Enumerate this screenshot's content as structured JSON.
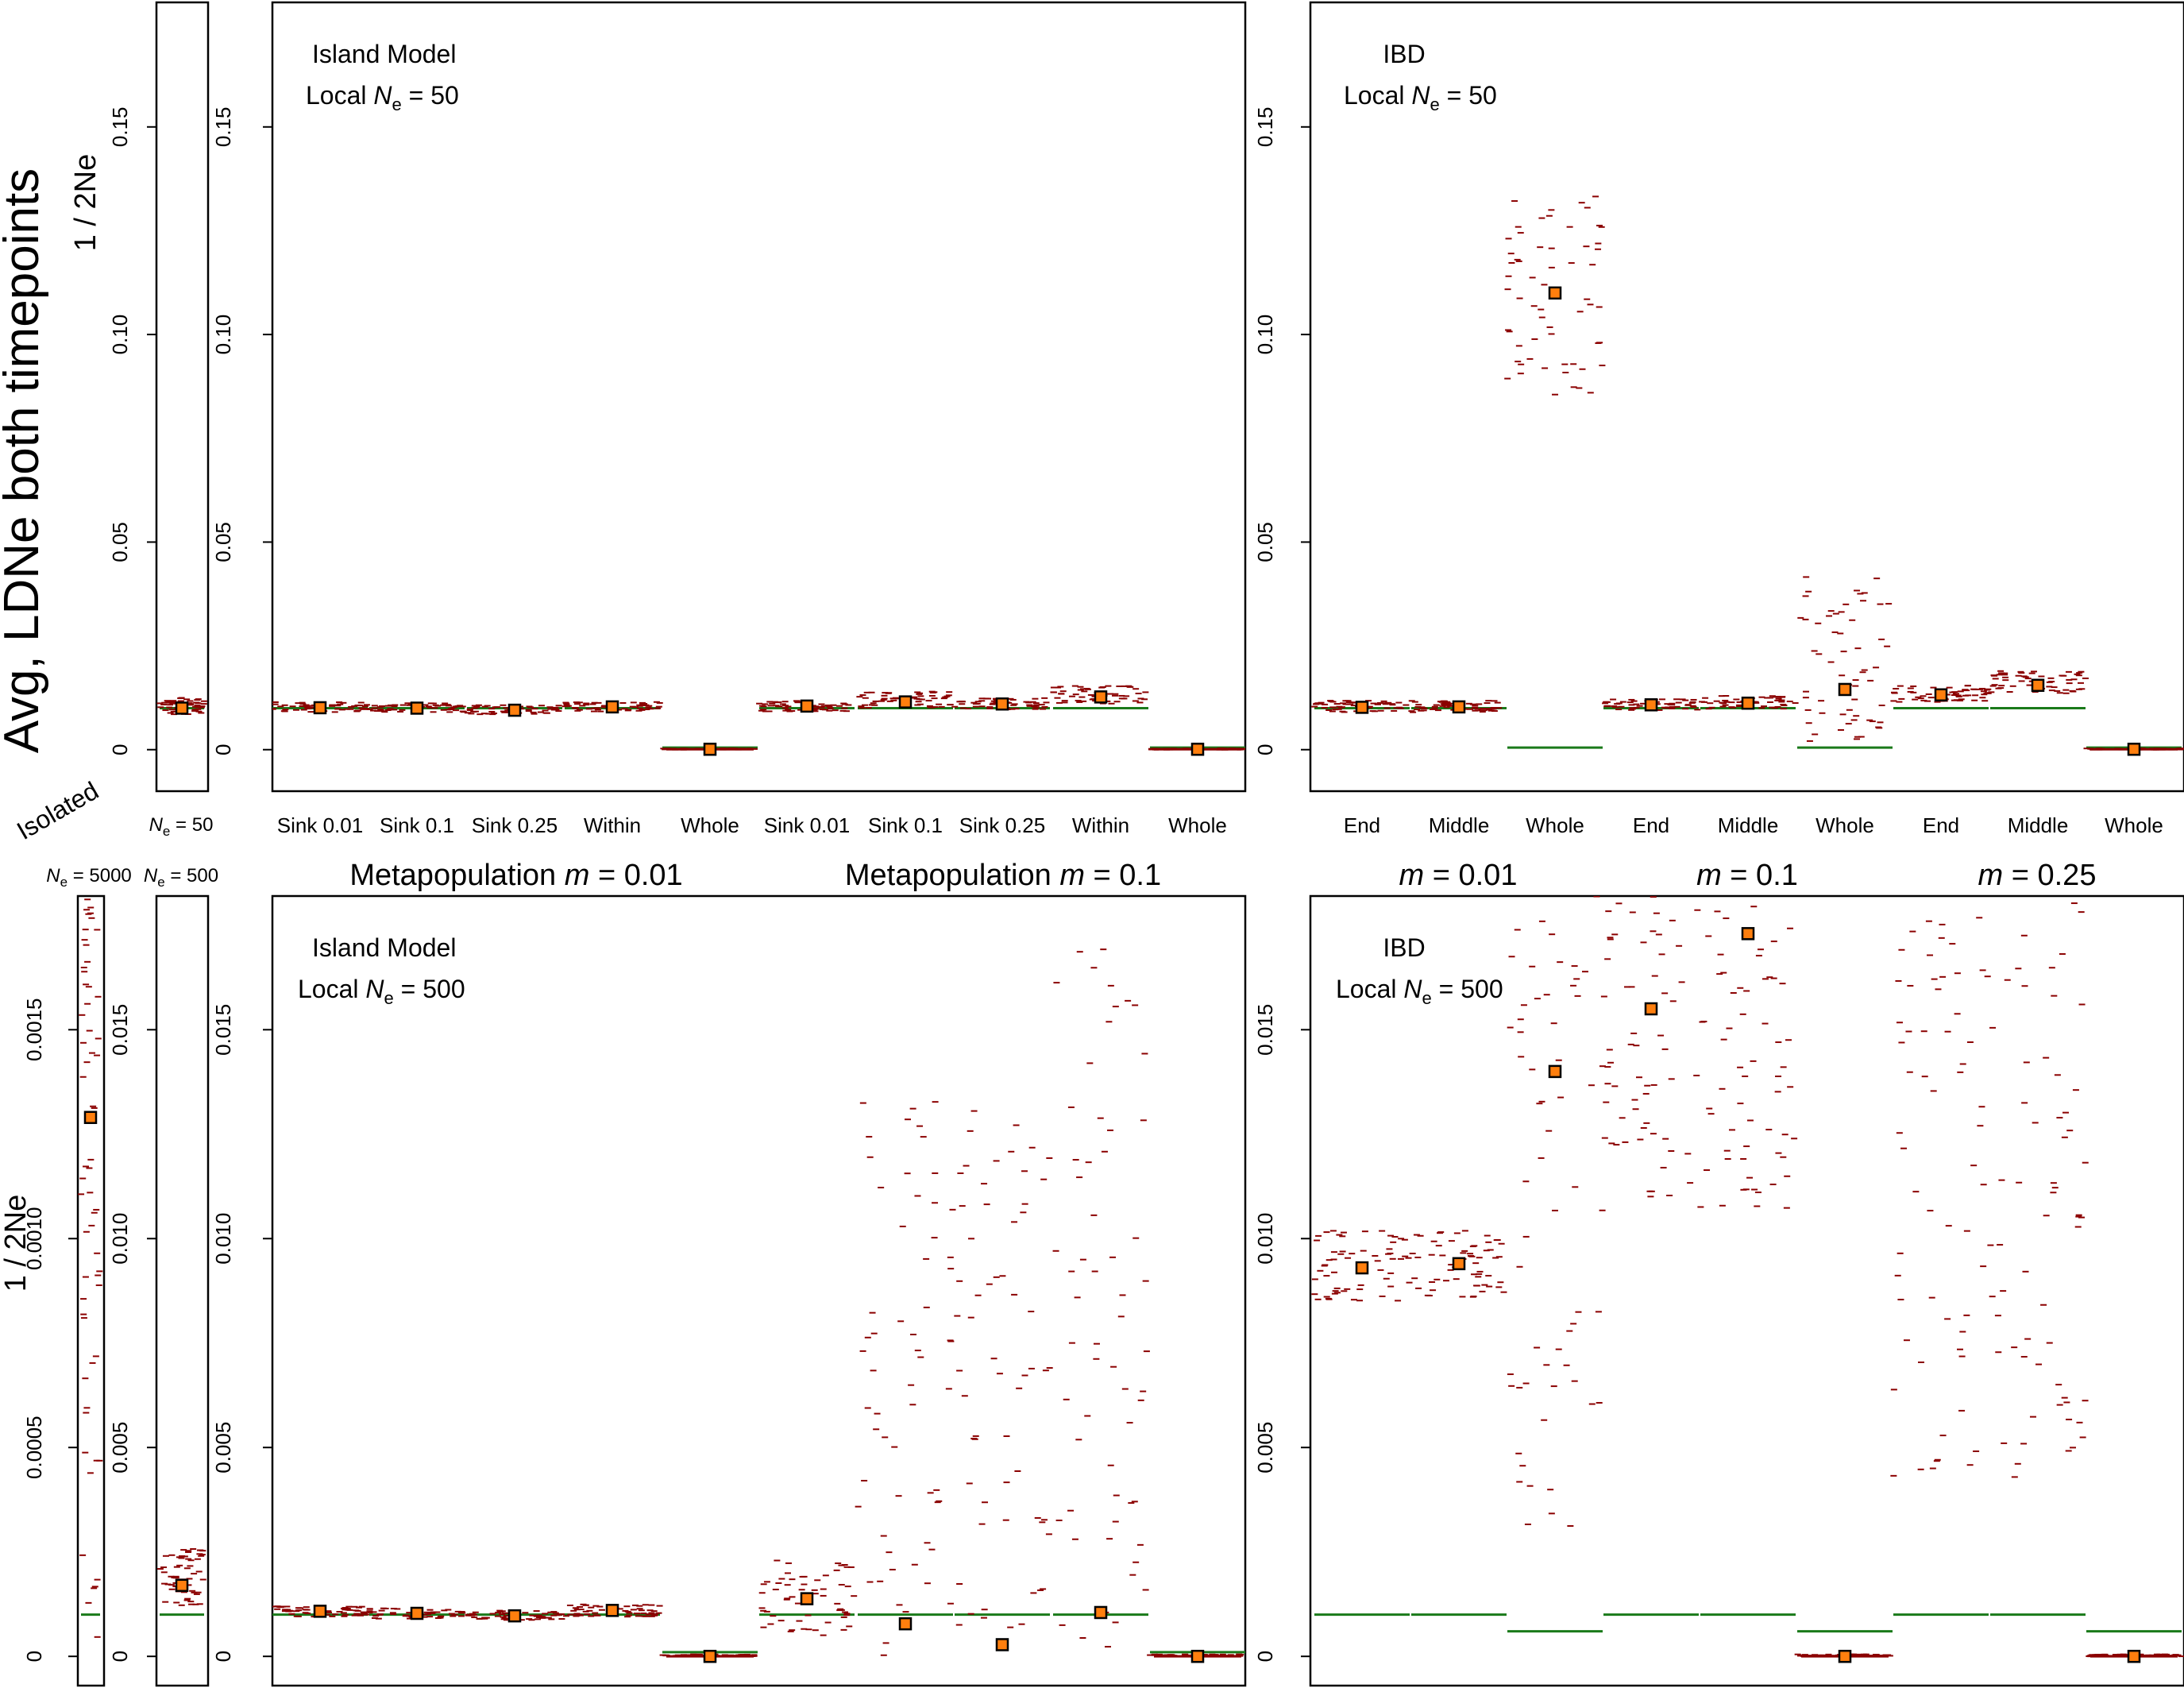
{
  "figure": {
    "main_ylabel": "Avg, LDNe both timepoints",
    "colors": {
      "sample_mark": "#8b0000",
      "mean_marker_fill": "#ff7f0e",
      "mean_marker_stroke": "#000000",
      "true_value_line": "#1a7a1a",
      "axis": "#000000"
    },
    "top_row": {
      "ylabel": "1 / 2Ne",
      "isolated_label": "Isolated",
      "isolated_ne_label": "N",
      "isolated_ne_sub": "e",
      "isolated_ne_value": " = 50"
    },
    "bottom_row": {
      "ylabel": "1 / 2Ne",
      "isolated_ne_5000": {
        "pre": "N",
        "sub": "e",
        "post": " = 5000"
      },
      "isolated_ne_500": {
        "pre": "N",
        "sub": "e",
        "post": " = 500"
      }
    },
    "group_headers": {
      "meta_01": {
        "pre": "Metapopulation ",
        "m": "m",
        "post": " = 0.01"
      },
      "meta_1": {
        "pre": "Metapopulation ",
        "m": "m",
        "post": " = 0.1"
      },
      "ibd_01": {
        "m": "m",
        "post": " = 0.01"
      },
      "ibd_1": {
        "m": "m",
        "post": " = 0.1"
      },
      "ibd_25": {
        "m": "m",
        "post": " = 0.25"
      }
    }
  },
  "chart_data": [
    {
      "panel": "top-isolated",
      "type": "scatter",
      "ylim": [
        -0.01,
        0.18
      ],
      "yticks": [
        0,
        0.05,
        0.1,
        0.15
      ],
      "ytick_labels": [
        "0",
        "0.05",
        "0.10",
        "0.15"
      ],
      "categories": [
        ""
      ],
      "means": [
        0.01
      ],
      "true_values": [
        0.01
      ],
      "spread": [
        [
          0.0085,
          0.0125
        ]
      ],
      "xlabel": "Ne = 50"
    },
    {
      "panel": "top-island",
      "type": "scatter",
      "title_line1": "Island Model",
      "title_line2": {
        "pre": "Local ",
        "n": "N",
        "sub": "e",
        "post": " = 50"
      },
      "ylim": [
        -0.01,
        0.18
      ],
      "yticks": [
        0,
        0.05,
        0.1,
        0.15
      ],
      "ytick_labels": [
        "0",
        "0.05",
        "0.10",
        "0.15"
      ],
      "categories": [
        "Sink 0.01",
        "Sink 0.1",
        "Sink 0.25",
        "Within",
        "Whole",
        "Sink 0.01",
        "Sink 0.1",
        "Sink 0.25",
        "Within",
        "Whole"
      ],
      "means": [
        0.0101,
        0.01,
        0.0095,
        0.0103,
        0.0001,
        0.0105,
        0.0115,
        0.011,
        0.0127,
        0.0001
      ],
      "true_values": [
        0.01,
        0.01,
        0.01,
        0.01,
        0.0005,
        0.01,
        0.01,
        0.01,
        0.01,
        0.0005
      ],
      "spread": [
        [
          0.009,
          0.0115
        ],
        [
          0.009,
          0.0112
        ],
        [
          0.0085,
          0.0108
        ],
        [
          0.0092,
          0.0115
        ],
        [
          0.0,
          0.0003
        ],
        [
          0.0092,
          0.0118
        ],
        [
          0.01,
          0.014
        ],
        [
          0.0097,
          0.0125
        ],
        [
          0.011,
          0.0155
        ],
        [
          0.0,
          0.0003
        ]
      ]
    },
    {
      "panel": "top-ibd",
      "type": "scatter",
      "title_line1": "IBD",
      "title_line2": {
        "pre": "Local ",
        "n": "N",
        "sub": "e",
        "post": " = 50"
      },
      "ylim": [
        -0.01,
        0.18
      ],
      "yticks": [
        0,
        0.05,
        0.1,
        0.15
      ],
      "ytick_labels": [
        "0",
        "0.05",
        "0.10",
        "0.15"
      ],
      "categories": [
        "End",
        "Middle",
        "Whole",
        "End",
        "Middle",
        "Whole",
        "End",
        "Middle",
        "Whole"
      ],
      "means": [
        0.0102,
        0.0103,
        0.11,
        0.0108,
        0.0112,
        0.0145,
        0.0132,
        0.0155,
        0.0001
      ],
      "true_values": [
        0.01,
        0.01,
        0.0005,
        0.01,
        0.01,
        0.0005,
        0.01,
        0.01,
        0.0005
      ],
      "spread": [
        [
          0.009,
          0.0118
        ],
        [
          0.009,
          0.0118
        ],
        [
          0.084,
          0.135
        ],
        [
          0.0095,
          0.0122
        ],
        [
          0.0098,
          0.013
        ],
        [
          0.002,
          0.042
        ],
        [
          0.0115,
          0.0155
        ],
        [
          0.0135,
          0.019
        ],
        [
          0.0,
          0.0003
        ]
      ]
    },
    {
      "panel": "bottom-isolated-5000",
      "type": "scatter",
      "ylim": [
        -7e-05,
        0.00182
      ],
      "yticks": [
        0,
        0.0005,
        0.001,
        0.0015
      ],
      "ytick_labels": [
        "0",
        "0.0005",
        "0.0010",
        "0.0015"
      ],
      "categories": [
        ""
      ],
      "means": [
        0.00129
      ],
      "true_values": [
        0.0001
      ],
      "spread": [
        [
          0.0,
          0.00182
        ]
      ]
    },
    {
      "panel": "bottom-isolated-500",
      "type": "scatter",
      "ylim": [
        -0.0007,
        0.0182
      ],
      "yticks": [
        0,
        0.005,
        0.01,
        0.015
      ],
      "ytick_labels": [
        "0",
        "0.005",
        "0.010",
        "0.015"
      ],
      "categories": [
        ""
      ],
      "means": [
        0.0017
      ],
      "true_values": [
        0.001
      ],
      "spread": [
        [
          0.0012,
          0.0026
        ]
      ]
    },
    {
      "panel": "bottom-island",
      "type": "scatter",
      "title_line1": "Island Model",
      "title_line2": {
        "pre": "Local ",
        "n": "N",
        "sub": "e",
        "post": " = 500"
      },
      "ylim": [
        -0.0007,
        0.0182
      ],
      "yticks": [
        0,
        0.005,
        0.01,
        0.015
      ],
      "ytick_labels": [
        "0",
        "0.005",
        "0.010",
        "0.015"
      ],
      "categories": [
        "",
        "",
        "",
        "",
        "",
        "",
        "",
        "",
        "",
        ""
      ],
      "means": [
        0.00108,
        0.00103,
        0.00097,
        0.0011,
        0.0,
        0.00138,
        0.00078,
        0.00028,
        0.00105,
        0.0
      ],
      "true_values": [
        0.001,
        0.001,
        0.001,
        0.001,
        0.0001,
        0.001,
        0.001,
        0.001,
        0.001,
        0.0001
      ],
      "spread": [
        [
          0.00095,
          0.0012
        ],
        [
          0.0009,
          0.00115
        ],
        [
          0.00085,
          0.0011
        ],
        [
          0.00095,
          0.00125
        ],
        [
          0.0,
          5e-05
        ],
        [
          0.0005,
          0.0023
        ],
        [
          0.0,
          0.0133
        ],
        [
          0.0,
          0.0131
        ],
        [
          0.0,
          0.0173
        ],
        [
          0.0,
          5e-05
        ]
      ]
    },
    {
      "panel": "bottom-ibd",
      "type": "scatter",
      "title_line1": "IBD",
      "title_line2": {
        "pre": "Local ",
        "n": "N",
        "sub": "e",
        "post": " = 500"
      },
      "ylim": [
        -0.0007,
        0.0182
      ],
      "yticks": [
        0,
        0.005,
        0.01,
        0.015
      ],
      "ytick_labels": [
        "0",
        "0.005",
        "0.010",
        "0.015"
      ],
      "categories": [
        "",
        "",
        "",
        "",
        "",
        "",
        "",
        "",
        ""
      ],
      "means": [
        0.0093,
        0.0094,
        0.014,
        0.0155,
        0.0173,
        0.0,
        null,
        null,
        0.0
      ],
      "true_values": [
        0.001,
        0.001,
        0.0006,
        0.001,
        0.001,
        0.0006,
        0.001,
        0.001,
        0.0006
      ],
      "spread": [
        [
          0.0085,
          0.0102
        ],
        [
          0.0086,
          0.0102
        ],
        [
          0.003,
          0.0182
        ],
        [
          0.011,
          0.0182
        ],
        [
          0.0105,
          0.0182
        ],
        [
          0.0,
          5e-05
        ],
        [
          0.004,
          0.0182
        ],
        [
          0.0042,
          0.0182
        ],
        [
          0.0,
          5e-05
        ]
      ]
    }
  ]
}
